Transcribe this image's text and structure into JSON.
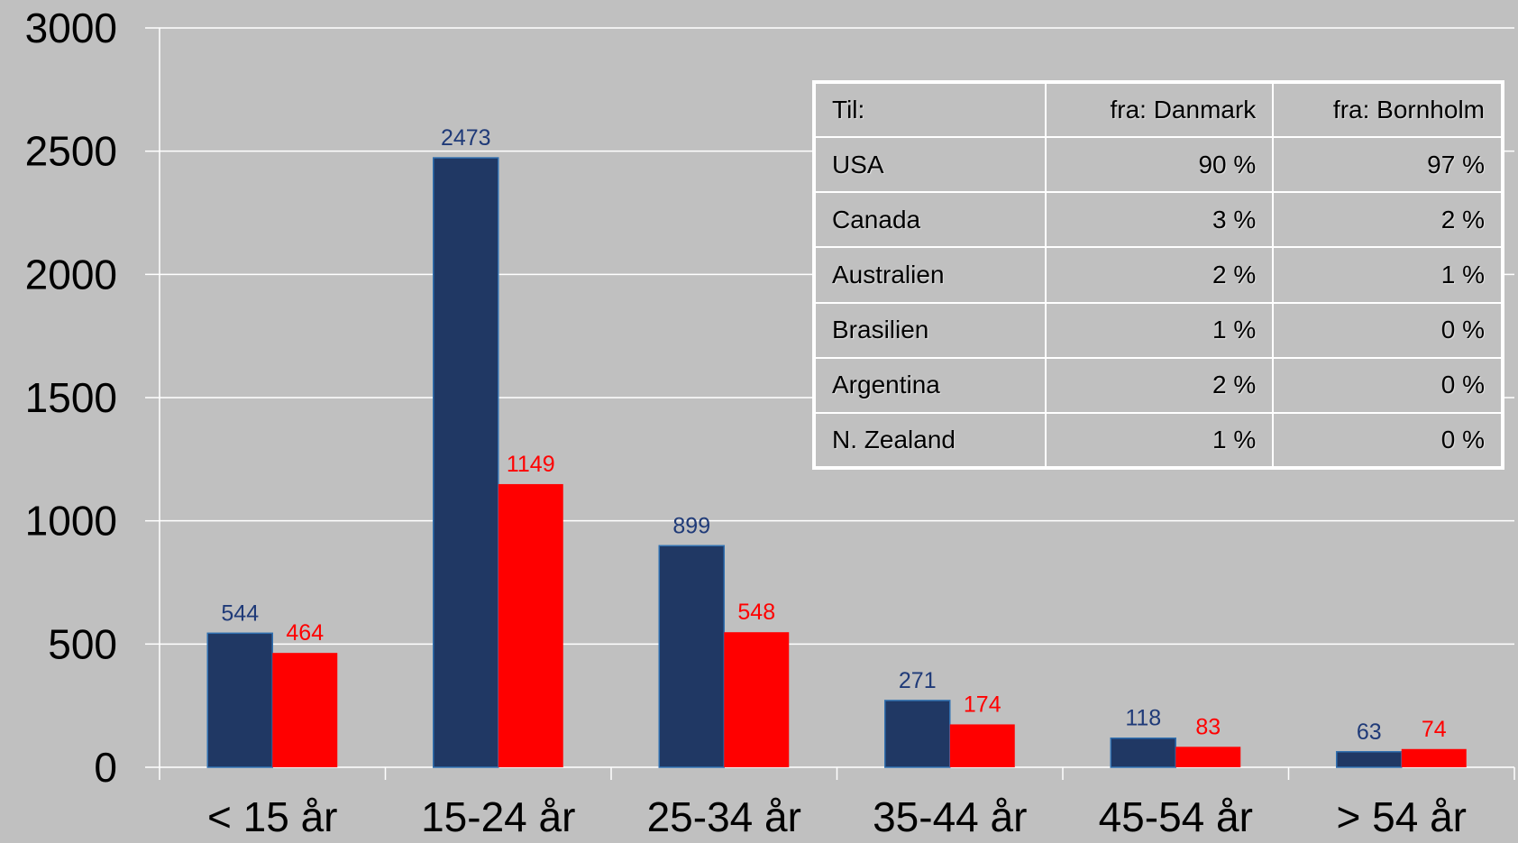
{
  "chart_data": {
    "type": "bar",
    "categories": [
      "< 15 år",
      "15-24 år",
      "25-34 år",
      "35-44 år",
      "45-54 år",
      "> 54 år"
    ],
    "series": [
      {
        "values": [
          544,
          2473,
          899,
          271,
          118,
          63
        ],
        "color": "#203864"
      },
      {
        "values": [
          464,
          1149,
          548,
          174,
          83,
          74
        ],
        "color": "#ff0000"
      }
    ],
    "label_colors": [
      "#1f3a78",
      "#ff0000"
    ],
    "ylim": [
      0,
      3000
    ],
    "yticks": [
      "0",
      "500",
      "1000",
      "1500",
      "2000",
      "2500",
      "3000"
    ],
    "grid": true,
    "background": "#c0c0c0"
  },
  "table": {
    "header": [
      "Til:",
      "fra: Danmark",
      "fra: Bornholm"
    ],
    "rows": [
      [
        "USA",
        "90 %",
        "97 %"
      ],
      [
        "Canada",
        "3 %",
        "2 %"
      ],
      [
        "Australien",
        "2 %",
        "1 %"
      ],
      [
        "Brasilien",
        "1 %",
        "0 %"
      ],
      [
        "Argentina",
        "2 %",
        "0 %"
      ],
      [
        "N. Zealand",
        "1 %",
        "0 %"
      ]
    ]
  }
}
